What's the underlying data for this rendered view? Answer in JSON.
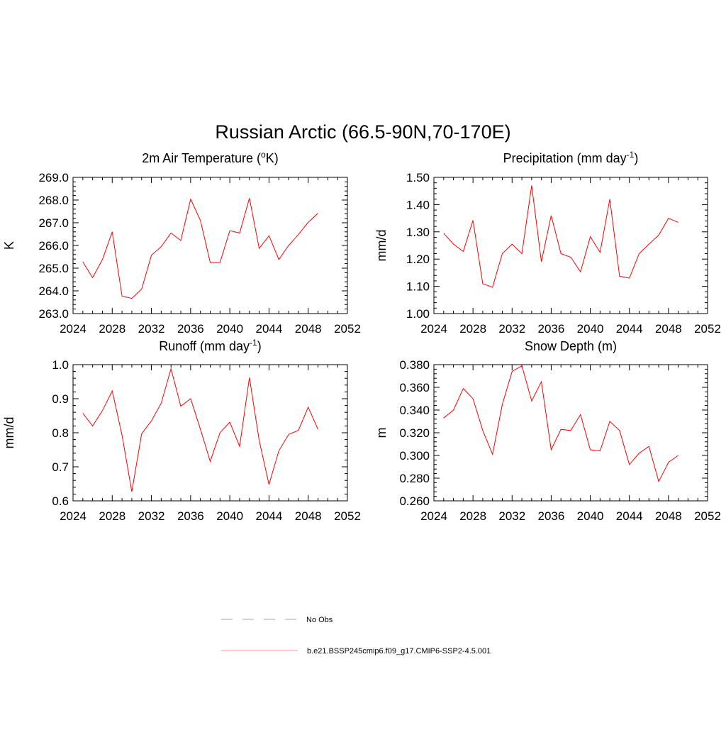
{
  "main_title": "Russian Arctic (66.5-90N,70-170E)",
  "colors": {
    "model_line": "#ff0000",
    "obs_line": "#9999ff",
    "axis": "#000000",
    "background": "#ffffff"
  },
  "legend": {
    "items": [
      {
        "label": "No Obs",
        "style": "dashed",
        "color": "#9999ff"
      },
      {
        "label": "b.e21.BSSP245cmip6.f09_g17.CMIP6-SSP2-4.5.001",
        "style": "solid",
        "color": "#ff9999"
      }
    ]
  },
  "chart_data": [
    {
      "type": "line",
      "title": "2m Air Temperature (",
      "title_sup": "o",
      "title_after": "K)",
      "ylabel": "K",
      "xlim": [
        2024,
        2052
      ],
      "ylim": [
        263.0,
        269.0
      ],
      "xticks": [
        "2024",
        "2028",
        "2032",
        "2036",
        "2040",
        "2044",
        "2048",
        "2052"
      ],
      "yticks": [
        "263.0",
        "264.0",
        "265.0",
        "266.0",
        "267.0",
        "268.0",
        "269.0"
      ],
      "x": [
        2025,
        2026,
        2027,
        2028,
        2029,
        2030,
        2031,
        2032,
        2033,
        2034,
        2035,
        2036,
        2037,
        2038,
        2039,
        2040,
        2041,
        2042,
        2043,
        2044,
        2045,
        2046,
        2047,
        2048,
        2049
      ],
      "series": [
        {
          "name": "b.e21.BSSP245cmip6.f09_g17.CMIP6-SSP2-4.5.001",
          "values": [
            265.28,
            264.58,
            265.38,
            266.6,
            263.77,
            263.67,
            264.08,
            265.57,
            265.95,
            266.55,
            266.22,
            268.04,
            267.1,
            265.25,
            265.25,
            266.65,
            266.55,
            268.08,
            265.87,
            266.43,
            265.38,
            266.0,
            266.48,
            267.02,
            267.42
          ]
        }
      ]
    },
    {
      "type": "line",
      "title": "Precipitation (mm day",
      "title_sup": "-1",
      "title_after": ")",
      "ylabel": "mm/d",
      "xlim": [
        2024,
        2052
      ],
      "ylim": [
        1.0,
        1.5
      ],
      "xticks": [
        "2024",
        "2028",
        "2032",
        "2036",
        "2040",
        "2044",
        "2048",
        "2052"
      ],
      "yticks": [
        "1.00",
        "1.10",
        "1.20",
        "1.30",
        "1.40",
        "1.50"
      ],
      "x": [
        2025,
        2026,
        2027,
        2028,
        2029,
        2030,
        2031,
        2032,
        2033,
        2034,
        2035,
        2036,
        2037,
        2038,
        2039,
        2040,
        2041,
        2042,
        2043,
        2044,
        2045,
        2046,
        2047,
        2048,
        2049
      ],
      "series": [
        {
          "name": "b.e21.BSSP245cmip6.f09_g17.CMIP6-SSP2-4.5.001",
          "values": [
            1.295,
            1.255,
            1.228,
            1.342,
            1.11,
            1.097,
            1.22,
            1.255,
            1.22,
            1.47,
            1.19,
            1.36,
            1.22,
            1.207,
            1.153,
            1.282,
            1.225,
            1.42,
            1.137,
            1.13,
            1.22,
            1.255,
            1.288,
            1.35,
            1.335
          ]
        }
      ]
    },
    {
      "type": "line",
      "title": "Runoff (mm day",
      "title_sup": "-1",
      "title_after": ")",
      "ylabel": "mm/d",
      "xlim": [
        2024,
        2052
      ],
      "ylim": [
        0.6,
        1.0
      ],
      "xticks": [
        "2024",
        "2028",
        "2032",
        "2036",
        "2040",
        "2044",
        "2048",
        "2052"
      ],
      "yticks": [
        "0.6",
        "0.7",
        "0.8",
        "0.9",
        "1.0"
      ],
      "x": [
        2025,
        2026,
        2027,
        2028,
        2029,
        2030,
        2031,
        2032,
        2033,
        2034,
        2035,
        2036,
        2037,
        2038,
        2039,
        2040,
        2041,
        2042,
        2043,
        2044,
        2045,
        2046,
        2047,
        2048,
        2049
      ],
      "series": [
        {
          "name": "b.e21.BSSP245cmip6.f09_g17.CMIP6-SSP2-4.5.001",
          "values": [
            0.857,
            0.82,
            0.865,
            0.923,
            0.793,
            0.627,
            0.797,
            0.835,
            0.887,
            0.988,
            0.878,
            0.9,
            0.81,
            0.716,
            0.8,
            0.831,
            0.76,
            0.962,
            0.777,
            0.648,
            0.747,
            0.795,
            0.807,
            0.875,
            0.81
          ]
        }
      ]
    },
    {
      "type": "line",
      "title": "Snow Depth (m)",
      "title_sup": "",
      "title_after": "",
      "ylabel": "m",
      "xlim": [
        2024,
        2052
      ],
      "ylim": [
        0.26,
        0.38
      ],
      "xticks": [
        "2024",
        "2028",
        "2032",
        "2036",
        "2040",
        "2044",
        "2048",
        "2052"
      ],
      "yticks": [
        "0.260",
        "0.280",
        "0.300",
        "0.320",
        "0.340",
        "0.360",
        "0.380"
      ],
      "x": [
        2025,
        2026,
        2027,
        2028,
        2029,
        2030,
        2031,
        2032,
        2033,
        2034,
        2035,
        2036,
        2037,
        2038,
        2039,
        2040,
        2041,
        2042,
        2043,
        2044,
        2045,
        2046,
        2047,
        2048,
        2049
      ],
      "series": [
        {
          "name": "b.e21.BSSP245cmip6.f09_g17.CMIP6-SSP2-4.5.001",
          "values": [
            0.333,
            0.34,
            0.359,
            0.35,
            0.322,
            0.301,
            0.345,
            0.374,
            0.379,
            0.348,
            0.365,
            0.305,
            0.323,
            0.322,
            0.336,
            0.305,
            0.304,
            0.33,
            0.322,
            0.292,
            0.302,
            0.308,
            0.277,
            0.294,
            0.3
          ]
        }
      ]
    }
  ]
}
